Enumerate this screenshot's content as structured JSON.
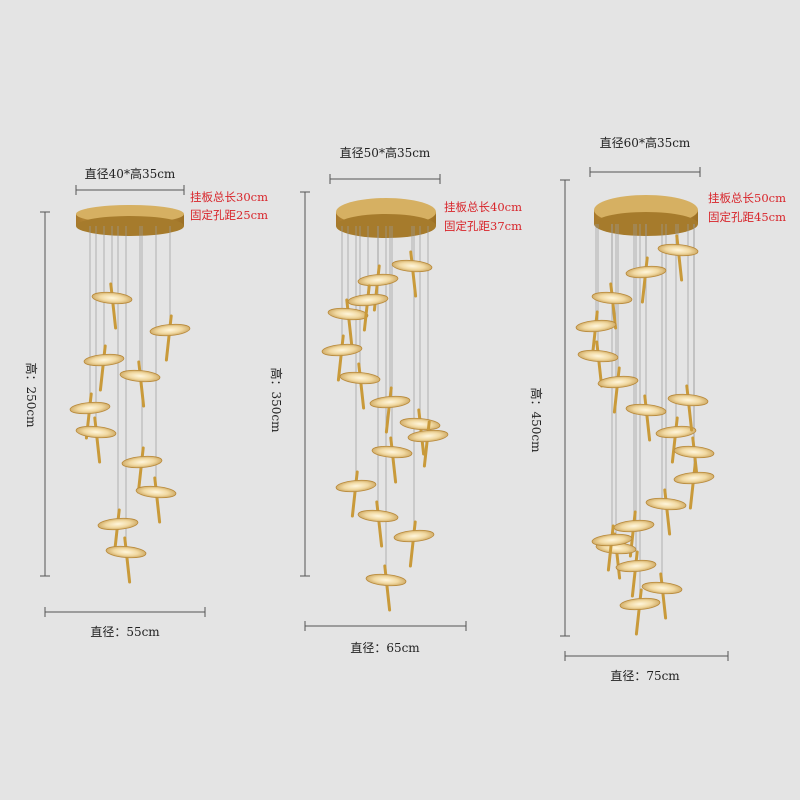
{
  "background_color": "#e4e4e4",
  "gold_color": "#c99a3a",
  "note_color": "#d8242a",
  "models": [
    {
      "canopy_label": "直径40*高35cm",
      "plate_note_1": "挂板总长30cm",
      "plate_note_2": "固定孔距25cm",
      "height_label": "高：250cm",
      "diameter_label": "直径：55cm",
      "lamp_count": 10
    },
    {
      "canopy_label": "直径50*高35cm",
      "plate_note_1": "挂板总长40cm",
      "plate_note_2": "固定孔距37cm",
      "height_label": "高：350cm",
      "diameter_label": "直径：65cm",
      "lamp_count": 14
    },
    {
      "canopy_label": "直径60*高35cm",
      "plate_note_1": "挂板总长50cm",
      "plate_note_2": "固定孔距45cm",
      "height_label": "高：450cm",
      "diameter_label": "直径：75cm",
      "lamp_count": 18
    }
  ]
}
